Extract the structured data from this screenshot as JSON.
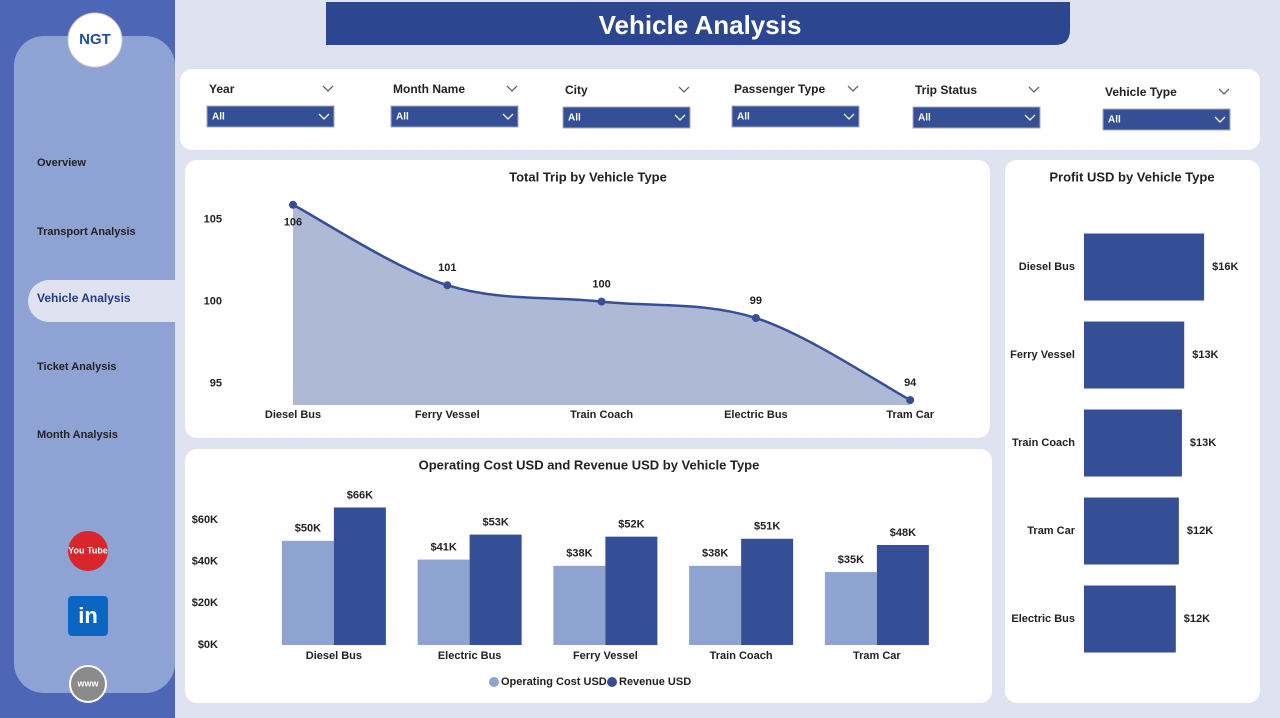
{
  "header": {
    "title": "Vehicle Analysis",
    "logo": "NGT"
  },
  "nav": {
    "items": [
      "Overview",
      "Transport Analysis",
      "Vehicle Analysis",
      "Ticket Analysis",
      "Month Analysis"
    ],
    "active": 2
  },
  "social": [
    "You Tube",
    "in",
    "www"
  ],
  "filters": [
    {
      "label": "Year",
      "value": "All"
    },
    {
      "label": "Month Name",
      "value": "All"
    },
    {
      "label": "City",
      "value": "All"
    },
    {
      "label": "Passenger Type",
      "value": "All"
    },
    {
      "label": "Trip Status",
      "value": "All"
    },
    {
      "label": "Vehicle Type",
      "value": "All"
    }
  ],
  "chart_data": [
    {
      "type": "area",
      "title": "Total Trip by Vehicle Type",
      "categories": [
        "Diesel Bus",
        "Ferry Vessel",
        "Train Coach",
        "Electric Bus",
        "Tram Car"
      ],
      "values": [
        105.9,
        101,
        100,
        99,
        94
      ],
      "value_labels": [
        "106",
        "101",
        "100",
        "99",
        "94"
      ],
      "color": "#354f96",
      "fill": "#aeb9d6",
      "ylim": [
        93.7,
        106.8
      ],
      "yticks": [
        95,
        100,
        105
      ]
    },
    {
      "type": "grouped-bar",
      "title": "Operating Cost USD and Revenue USD by Vehicle Type",
      "categories": [
        "Diesel Bus",
        "Electric Bus",
        "Ferry Vessel",
        "Train Coach",
        "Tram Car"
      ],
      "series": [
        {
          "name": "Operating Cost USD",
          "color": "#8fa3d1",
          "values": [
            50000,
            41000,
            38000,
            38000,
            35000
          ],
          "value_labels": [
            "$50K",
            "$41K",
            "$38K",
            "$38K",
            "$35K"
          ]
        },
        {
          "name": "Revenue USD",
          "color": "#354f96",
          "values": [
            66000,
            53000,
            52000,
            51000,
            48000
          ],
          "value_labels": [
            "$66K",
            "$53K",
            "$52K",
            "$51K",
            "$48K"
          ]
        }
      ],
      "ylim": [
        0,
        72000
      ],
      "yticks": [
        {
          "value": 0,
          "label": "$0K"
        },
        {
          "value": 20000,
          "label": "$20K"
        },
        {
          "value": 40000,
          "label": "$40K"
        },
        {
          "value": 60000,
          "label": "$60K"
        }
      ]
    },
    {
      "type": "hbar",
      "title": "Profit USD by Vehicle Type",
      "categories": [
        "Diesel Bus",
        "Ferry Vessel",
        "Train Coach",
        "Tram Car",
        "Electric Bus"
      ],
      "values": [
        15700,
        13100,
        12800,
        12400,
        12000
      ],
      "value_labels": [
        "$16K",
        "$13K",
        "$13K",
        "$12K",
        "$12K"
      ],
      "color": "#354f96",
      "xlim": [
        0,
        20000
      ]
    }
  ]
}
